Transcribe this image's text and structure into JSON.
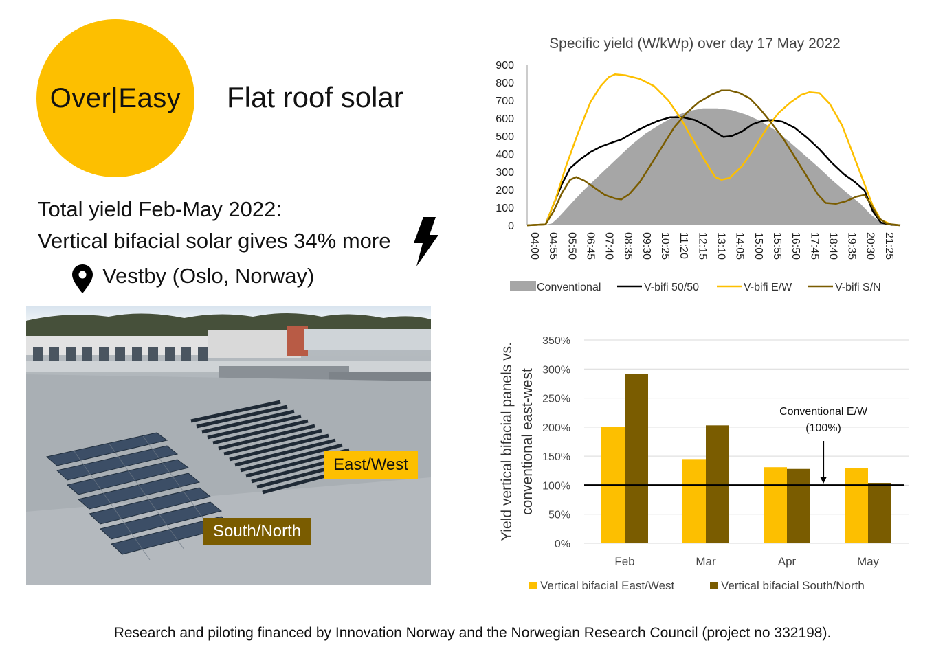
{
  "brand": {
    "logo_text": "Over|Easy",
    "accent": "#fdbf00"
  },
  "headline": "Flat roof solar",
  "summary": {
    "line1": "Total yield Feb-May 2022:",
    "line2": "Vertical bifacial solar gives 34% more",
    "location": "Vestby (Oslo, Norway)"
  },
  "photo": {
    "label_ew": "East/West",
    "label_sn": "South/North"
  },
  "footer": "Research and piloting financed by Innovation Norway and the Norwegian Research Council (project no 332198).",
  "icons": {
    "pin": "map-pin-icon",
    "bolt": "lightning-bolt-icon"
  },
  "chart_data": [
    {
      "type": "line",
      "title": "Specific yield (W/kWp) over day 17 May 2022",
      "xlabel": "",
      "ylabel": "",
      "ylim": [
        0,
        900
      ],
      "yticks": [
        0,
        100,
        200,
        300,
        400,
        500,
        600,
        700,
        800,
        900
      ],
      "x_tick_labels": [
        "04:00",
        "04:55",
        "05:50",
        "06:45",
        "07:40",
        "08:35",
        "09:30",
        "10:25",
        "11:20",
        "12:15",
        "13:10",
        "14:05",
        "15:00",
        "15:55",
        "16:50",
        "17:45",
        "18:40",
        "19:35",
        "20:30",
        "21:25"
      ],
      "x_start_hour": 4.0,
      "x_end_hour": 22.25,
      "grid": false,
      "legend_position": "bottom",
      "series": [
        {
          "name": "Conventional",
          "style": "area",
          "color": "#a6a6a6",
          "points": [
            [
              4.0,
              0
            ],
            [
              4.5,
              0
            ],
            [
              4.9,
              3
            ],
            [
              5.2,
              10
            ],
            [
              5.5,
              40
            ],
            [
              5.9,
              90
            ],
            [
              6.3,
              140
            ],
            [
              6.8,
              200
            ],
            [
              7.3,
              255
            ],
            [
              7.9,
              320
            ],
            [
              8.5,
              385
            ],
            [
              9.1,
              450
            ],
            [
              9.8,
              515
            ],
            [
              10.5,
              565
            ],
            [
              11.2,
              610
            ],
            [
              11.9,
              640
            ],
            [
              12.6,
              655
            ],
            [
              13.3,
              655
            ],
            [
              14.0,
              645
            ],
            [
              14.7,
              620
            ],
            [
              15.4,
              585
            ],
            [
              16.1,
              535
            ],
            [
              16.8,
              470
            ],
            [
              17.5,
              400
            ],
            [
              18.2,
              330
            ],
            [
              18.9,
              255
            ],
            [
              19.6,
              185
            ],
            [
              20.3,
              120
            ],
            [
              20.8,
              60
            ],
            [
              21.2,
              25
            ],
            [
              21.6,
              8
            ],
            [
              22.0,
              2
            ],
            [
              22.25,
              0
            ]
          ]
        },
        {
          "name": "V-bifi 50/50",
          "style": "line",
          "color": "#000000",
          "points": [
            [
              4.0,
              0
            ],
            [
              4.9,
              5
            ],
            [
              5.3,
              120
            ],
            [
              5.7,
              230
            ],
            [
              6.1,
              320
            ],
            [
              6.6,
              370
            ],
            [
              7.1,
              410
            ],
            [
              7.6,
              440
            ],
            [
              8.2,
              465
            ],
            [
              8.6,
              480
            ],
            [
              9.2,
              520
            ],
            [
              9.8,
              555
            ],
            [
              10.4,
              585
            ],
            [
              11.0,
              605
            ],
            [
              11.6,
              605
            ],
            [
              12.2,
              590
            ],
            [
              12.8,
              555
            ],
            [
              13.3,
              515
            ],
            [
              13.6,
              495
            ],
            [
              14.0,
              500
            ],
            [
              14.5,
              525
            ],
            [
              15.0,
              565
            ],
            [
              15.5,
              585
            ],
            [
              16.0,
              590
            ],
            [
              16.5,
              580
            ],
            [
              17.1,
              545
            ],
            [
              17.7,
              490
            ],
            [
              18.3,
              425
            ],
            [
              18.9,
              350
            ],
            [
              19.5,
              285
            ],
            [
              20.0,
              245
            ],
            [
              20.5,
              195
            ],
            [
              20.9,
              80
            ],
            [
              21.3,
              15
            ],
            [
              21.8,
              3
            ],
            [
              22.25,
              0
            ]
          ]
        },
        {
          "name": "V-bifi E/W",
          "style": "line",
          "color": "#fdbf00",
          "points": [
            [
              4.0,
              0
            ],
            [
              4.9,
              5
            ],
            [
              5.4,
              150
            ],
            [
              5.9,
              330
            ],
            [
              6.5,
              520
            ],
            [
              7.1,
              690
            ],
            [
              7.6,
              780
            ],
            [
              8.0,
              830
            ],
            [
              8.3,
              845
            ],
            [
              8.8,
              840
            ],
            [
              9.5,
              820
            ],
            [
              10.2,
              780
            ],
            [
              10.9,
              700
            ],
            [
              11.5,
              600
            ],
            [
              12.1,
              480
            ],
            [
              12.7,
              360
            ],
            [
              13.2,
              270
            ],
            [
              13.5,
              255
            ],
            [
              13.9,
              265
            ],
            [
              14.5,
              330
            ],
            [
              15.1,
              430
            ],
            [
              15.7,
              540
            ],
            [
              16.3,
              630
            ],
            [
              16.9,
              690
            ],
            [
              17.4,
              730
            ],
            [
              17.8,
              745
            ],
            [
              18.3,
              740
            ],
            [
              18.8,
              680
            ],
            [
              19.4,
              560
            ],
            [
              19.9,
              410
            ],
            [
              20.4,
              260
            ],
            [
              20.9,
              110
            ],
            [
              21.3,
              30
            ],
            [
              21.8,
              5
            ],
            [
              22.25,
              0
            ]
          ]
        },
        {
          "name": "V-bifi S/N",
          "style": "line",
          "color": "#7a5c00",
          "points": [
            [
              4.0,
              0
            ],
            [
              4.9,
              5
            ],
            [
              5.3,
              80
            ],
            [
              5.7,
              180
            ],
            [
              6.1,
              255
            ],
            [
              6.4,
              270
            ],
            [
              6.8,
              250
            ],
            [
              7.3,
              210
            ],
            [
              7.8,
              170
            ],
            [
              8.3,
              150
            ],
            [
              8.6,
              145
            ],
            [
              9.0,
              175
            ],
            [
              9.5,
              240
            ],
            [
              10.0,
              330
            ],
            [
              10.6,
              440
            ],
            [
              11.2,
              550
            ],
            [
              11.8,
              630
            ],
            [
              12.4,
              690
            ],
            [
              13.0,
              730
            ],
            [
              13.5,
              755
            ],
            [
              13.9,
              755
            ],
            [
              14.4,
              740
            ],
            [
              14.9,
              710
            ],
            [
              15.4,
              650
            ],
            [
              15.9,
              580
            ],
            [
              16.5,
              490
            ],
            [
              17.1,
              380
            ],
            [
              17.7,
              270
            ],
            [
              18.2,
              175
            ],
            [
              18.6,
              125
            ],
            [
              19.1,
              120
            ],
            [
              19.6,
              135
            ],
            [
              20.1,
              160
            ],
            [
              20.5,
              170
            ],
            [
              20.8,
              120
            ],
            [
              21.2,
              40
            ],
            [
              21.6,
              8
            ],
            [
              22.25,
              0
            ]
          ]
        }
      ]
    },
    {
      "type": "bar",
      "title": "",
      "xlabel": "",
      "ylabel": "Yield vertical bifacial panels vs. conventional east-west",
      "ylim": [
        0,
        350
      ],
      "yticks": [
        0,
        50,
        100,
        150,
        200,
        250,
        300,
        350
      ],
      "ytick_suffix": "%",
      "categories": [
        "Feb",
        "Mar",
        "Apr",
        "May"
      ],
      "grid": true,
      "legend_position": "bottom",
      "series": [
        {
          "name": "Vertical bifacial East/West",
          "color": "#fdbf00",
          "values": [
            200,
            145,
            131,
            130
          ]
        },
        {
          "name": "Vertical bifacial South/North",
          "color": "#7a5c00",
          "values": [
            291,
            203,
            128,
            104
          ]
        }
      ],
      "reference_line": {
        "value": 100,
        "label_line1": "Conventional E/W",
        "label_line2": "(100%)"
      }
    }
  ]
}
